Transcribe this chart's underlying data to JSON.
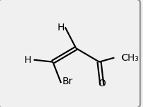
{
  "bg_color": "#f0f0f0",
  "border_color": "#999999",
  "bond_color": "black",
  "text_color": "black",
  "atoms": {
    "C1": [
      0.38,
      0.42
    ],
    "C2": [
      0.55,
      0.55
    ],
    "C3": [
      0.72,
      0.42
    ]
  },
  "figsize": [
    2.06,
    1.55
  ],
  "dpi": 100
}
